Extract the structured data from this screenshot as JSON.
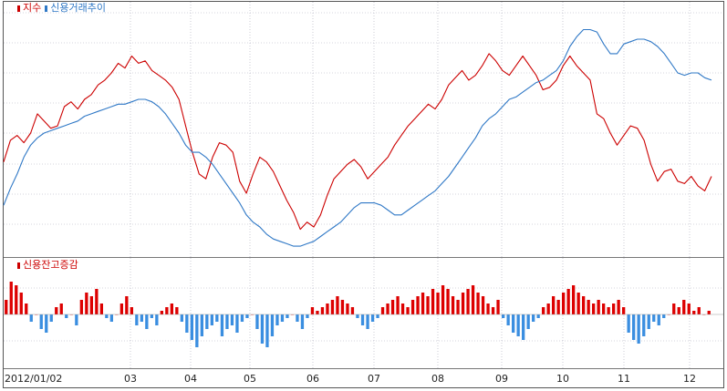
{
  "chart_data": [
    {
      "type": "line",
      "panel": "upper",
      "legend": "top-left",
      "grid": true,
      "series": [
        {
          "name": "지수",
          "color": "#cc0000",
          "values": [
            38,
            47,
            49,
            46,
            50,
            58,
            55,
            52,
            53,
            61,
            63,
            60,
            64,
            66,
            70,
            72,
            75,
            79,
            77,
            82,
            79,
            80,
            76,
            74,
            72,
            69,
            64,
            53,
            42,
            33,
            31,
            40,
            46,
            45,
            42,
            30,
            25,
            33,
            40,
            38,
            34,
            28,
            22,
            17,
            10,
            13,
            11,
            16,
            24,
            31,
            34,
            37,
            39,
            36,
            31,
            34,
            37,
            40,
            45,
            49,
            53,
            56,
            59,
            62,
            60,
            64,
            70,
            73,
            76,
            72,
            74,
            78,
            83,
            80,
            76,
            74,
            78,
            82,
            78,
            74,
            68,
            69,
            72,
            78,
            82,
            78,
            75,
            72,
            58,
            56,
            50,
            45,
            49,
            53,
            52,
            47,
            37,
            30,
            34,
            35,
            30,
            29,
            32,
            28,
            26,
            32
          ]
        },
        {
          "name": "신용거래추이",
          "color": "#2f78c6",
          "values": [
            20,
            27,
            33,
            40,
            45,
            48,
            50,
            51,
            52,
            53,
            54,
            55,
            57,
            58,
            59,
            60,
            61,
            62,
            62,
            63,
            64,
            64,
            63,
            61,
            58,
            54,
            50,
            45,
            42,
            42,
            40,
            37,
            33,
            29,
            25,
            21,
            16,
            13,
            11,
            8,
            6,
            5,
            4,
            3,
            3,
            4,
            5,
            7,
            9,
            11,
            13,
            16,
            19,
            21,
            21,
            21,
            20,
            18,
            16,
            16,
            18,
            20,
            22,
            24,
            26,
            29,
            32,
            36,
            40,
            44,
            48,
            53,
            56,
            58,
            61,
            64,
            65,
            67,
            69,
            71,
            72,
            74,
            76,
            80,
            86,
            90,
            93,
            93,
            92,
            87,
            83,
            83,
            87,
            88,
            89,
            89,
            88,
            86,
            83,
            79,
            75,
            74,
            75,
            75,
            73,
            72
          ]
        }
      ]
    },
    {
      "type": "bar",
      "panel": "lower",
      "legend": "top-left",
      "grid": true,
      "series": [
        {
          "name": "신용잔고증감",
          "positive_color": "#dd0000",
          "negative_color": "#3a8ee0",
          "values": [
            4,
            9,
            8,
            6,
            3,
            -2,
            0,
            -4,
            -5,
            -2,
            2,
            3,
            -1,
            0,
            -3,
            4,
            6,
            5,
            7,
            3,
            -1,
            -2,
            0,
            3,
            5,
            2,
            -3,
            -2,
            -4,
            -1,
            -3,
            1,
            2,
            3,
            2,
            -2,
            -5,
            -7,
            -9,
            -6,
            -4,
            -3,
            -2,
            -6,
            -4,
            -3,
            -5,
            -2,
            -1,
            0,
            -4,
            -8,
            -9,
            -6,
            -3,
            -2,
            -1,
            0,
            -2,
            -4,
            -1,
            2,
            1,
            2,
            3,
            4,
            5,
            4,
            3,
            2,
            -1,
            -3,
            -4,
            -2,
            -1,
            2,
            3,
            4,
            5,
            3,
            2,
            4,
            5,
            6,
            5,
            7,
            6,
            8,
            7,
            5,
            4,
            6,
            7,
            8,
            6,
            5,
            3,
            2,
            4,
            -1,
            -3,
            -5,
            -6,
            -7,
            -4,
            -2,
            -1,
            2,
            3,
            5,
            4,
            6,
            7,
            8,
            6,
            5,
            4,
            3,
            4,
            3,
            2,
            3,
            4,
            2,
            -5,
            -7,
            -8,
            -6,
            -4,
            -2,
            -3,
            -1,
            0,
            3,
            2,
            4,
            3,
            1,
            2,
            0,
            1
          ]
        }
      ]
    }
  ],
  "x_axis": {
    "tick_labels": [
      "2012/01/02",
      "03",
      "04",
      "05",
      "06",
      "07",
      "08",
      "09",
      "10",
      "11",
      "12"
    ]
  }
}
